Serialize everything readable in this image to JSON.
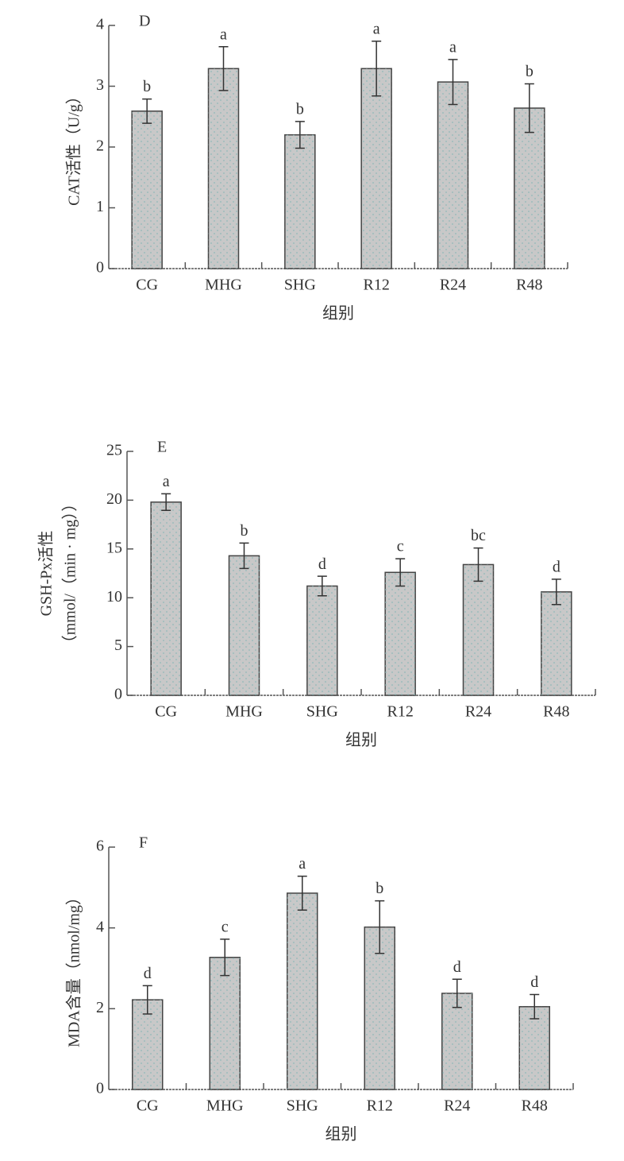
{
  "chart_data": [
    {
      "type": "bar",
      "panel": "D",
      "ylabel": [
        "CAT活性（U/g）"
      ],
      "xlabel": "组别",
      "categories": [
        "CG",
        "MHG",
        "SHG",
        "R12",
        "R24",
        "R48"
      ],
      "values": [
        2.59,
        3.29,
        2.2,
        3.29,
        3.07,
        2.64
      ],
      "errors": [
        0.2,
        0.36,
        0.22,
        0.45,
        0.37,
        0.4
      ],
      "annotations": [
        "b",
        "a",
        "b",
        "a",
        "a",
        "b"
      ],
      "color": "#c8c8c8",
      "ylim": [
        0,
        4
      ],
      "yticks": [
        0,
        1,
        2,
        3,
        4
      ]
    },
    {
      "type": "bar",
      "panel": "E",
      "ylabel": [
        "GSH-Px活性",
        "（mmol/（min · mg））"
      ],
      "xlabel": "组别",
      "categories": [
        "CG",
        "MHG",
        "SHG",
        "R12",
        "R24",
        "R48"
      ],
      "values": [
        19.8,
        14.3,
        11.2,
        12.6,
        13.4,
        10.6
      ],
      "errors": [
        0.85,
        1.3,
        1.0,
        1.4,
        1.7,
        1.3
      ],
      "annotations": [
        "a",
        "b",
        "d",
        "c",
        "bc",
        "d"
      ],
      "color": "#c8c8c8",
      "ylim": [
        0,
        25
      ],
      "yticks": [
        0,
        5,
        10,
        15,
        20,
        25
      ]
    },
    {
      "type": "bar",
      "panel": "F",
      "ylabel": [
        "MDA含量（nmol/mg）"
      ],
      "xlabel": "组别",
      "categories": [
        "CG",
        "MHG",
        "SHG",
        "R12",
        "R24",
        "R48"
      ],
      "values": [
        2.22,
        3.27,
        4.86,
        4.02,
        2.38,
        2.05
      ],
      "errors": [
        0.35,
        0.45,
        0.42,
        0.65,
        0.35,
        0.3
      ],
      "annotations": [
        "d",
        "c",
        "a",
        "b",
        "d",
        "d"
      ],
      "color": "#c8c8c8",
      "ylim": [
        0,
        6
      ],
      "yticks": [
        0,
        2,
        4,
        6
      ]
    }
  ]
}
